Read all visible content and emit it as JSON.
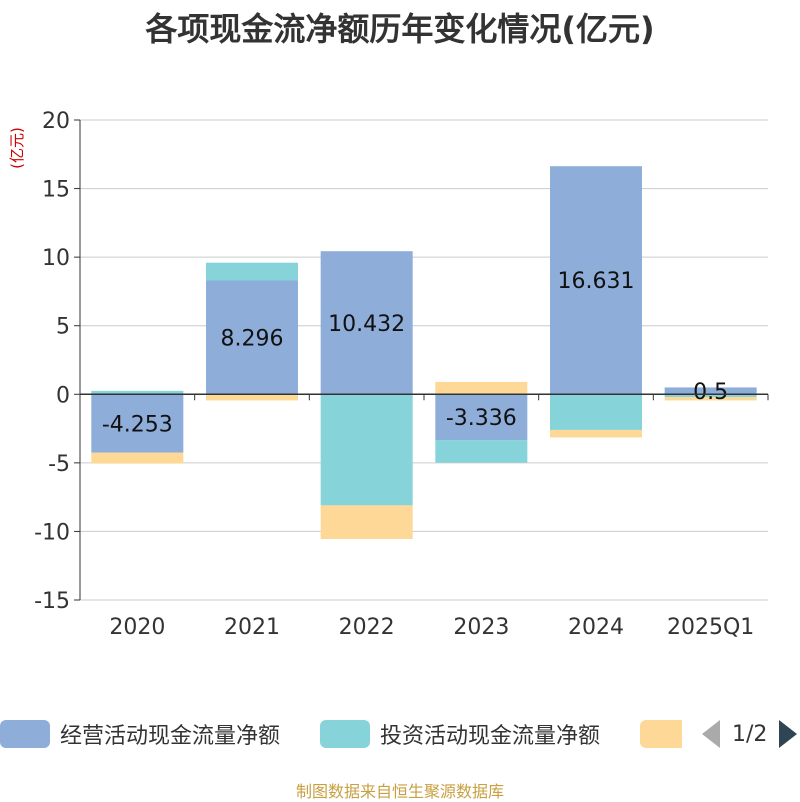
{
  "title": "各项现金流净额历年变化情况(亿元)",
  "source_note": "制图数据来自恒生聚源数据库",
  "chart_data": {
    "type": "bar",
    "stacked": true,
    "unit": "(亿元)",
    "categories": [
      "2020",
      "2021",
      "2022",
      "2023",
      "2024",
      "2025Q1"
    ],
    "ylim": [
      -15,
      20
    ],
    "yticks": [
      20,
      15,
      10,
      5,
      0,
      -5,
      -10,
      -15
    ],
    "grid": true,
    "legend_position": "bottom",
    "series": [
      {
        "name": "经营活动现金流量净额",
        "color": "#8eadd9",
        "values": [
          -4.253,
          8.296,
          10.432,
          -3.336,
          16.631,
          0.5
        ],
        "labels": [
          "-4.253",
          "8.296",
          "10.432",
          "-3.336",
          "16.631",
          "0.5"
        ]
      },
      {
        "name": "投资活动现金流量净额",
        "color": "#86d4d9",
        "values": [
          0.25,
          1.3,
          -8.1,
          -1.65,
          -2.6,
          -0.2
        ]
      },
      {
        "name": "",
        "color": "#fdd896",
        "values": [
          -0.8,
          -0.45,
          -2.45,
          0.9,
          -0.55,
          -0.25
        ]
      }
    ]
  },
  "legend": {
    "items": [
      {
        "label": "经营活动现金流量净额",
        "color": "#8eadd9"
      },
      {
        "label": "投资活动现金流量净额",
        "color": "#86d4d9"
      },
      {
        "label": "",
        "color": "#fdd896"
      }
    ],
    "pager": "1/2"
  }
}
